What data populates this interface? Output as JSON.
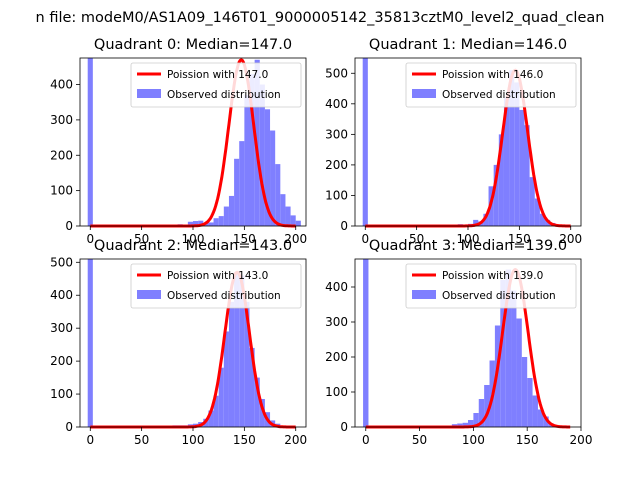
{
  "figure": {
    "suptitle": "n file: modeM0/AS1A09_146T01_9000005142_35813cztM0_level2_quad_clean",
    "colors": {
      "poisson": "#ff0000",
      "observed": "#7f7fff",
      "spike": "#7f7fff"
    }
  },
  "chart_data": [
    {
      "type": "histogram",
      "title": "Quadrant 0: Median=147.0",
      "median": 147.0,
      "xlim": [
        -10,
        210
      ],
      "ylim": [
        0,
        475
      ],
      "xticks": [
        0,
        50,
        100,
        150,
        200
      ],
      "yticks": [
        0,
        100,
        200,
        300,
        400
      ],
      "spike": {
        "x": 0,
        "count": 475
      },
      "bins": {
        "start": 80,
        "width": 5,
        "counts": [
          4,
          5,
          3,
          12,
          14,
          15,
          8,
          10,
          22,
          28,
          55,
          85,
          190,
          240,
          370,
          430,
          470,
          400,
          330,
          270,
          175,
          90,
          55,
          30,
          15
        ]
      },
      "legend": [
        {
          "label": "Poission with 147.0",
          "kind": "line"
        },
        {
          "label": "Observed distribution",
          "kind": "patch"
        }
      ]
    },
    {
      "type": "histogram",
      "title": "Quadrant 1: Median=146.0",
      "median": 146.0,
      "xlim": [
        -10,
        210
      ],
      "ylim": [
        0,
        550
      ],
      "xticks": [
        0,
        50,
        100,
        150,
        200
      ],
      "yticks": [
        0,
        100,
        200,
        300,
        400,
        500
      ],
      "spike": {
        "x": 0,
        "count": 550
      },
      "bins": {
        "start": 90,
        "width": 5,
        "counts": [
          6,
          5,
          7,
          20,
          15,
          40,
          130,
          200,
          300,
          420,
          510,
          470,
          380,
          330,
          160,
          90,
          40,
          20,
          10
        ]
      },
      "legend": [
        {
          "label": "Poission with 146.0",
          "kind": "line"
        },
        {
          "label": "Observed distribution",
          "kind": "patch"
        }
      ]
    },
    {
      "type": "histogram",
      "title": "Quadrant 2: Median=143.0",
      "median": 143.0,
      "xlim": [
        -10,
        210
      ],
      "ylim": [
        0,
        510
      ],
      "xticks": [
        0,
        50,
        100,
        150,
        200
      ],
      "yticks": [
        0,
        100,
        200,
        300,
        400,
        500
      ],
      "spike": {
        "x": 0,
        "count": 510
      },
      "bins": {
        "start": 80,
        "width": 5,
        "counts": [
          5,
          5,
          5,
          8,
          10,
          15,
          25,
          50,
          95,
          180,
          290,
          380,
          470,
          460,
          380,
          240,
          150,
          85,
          45,
          20,
          10
        ]
      },
      "legend": [
        {
          "label": "Poission with 143.0",
          "kind": "line"
        },
        {
          "label": "Observed distribution",
          "kind": "patch"
        }
      ]
    },
    {
      "type": "histogram",
      "title": "Quadrant 3: Median=139.0",
      "median": 139.0,
      "xlim": [
        -10,
        200
      ],
      "ylim": [
        0,
        480
      ],
      "xticks": [
        0,
        50,
        100,
        150,
        200
      ],
      "yticks": [
        0,
        100,
        200,
        300,
        400
      ],
      "spike": {
        "x": 0,
        "count": 480
      },
      "bins": {
        "start": 80,
        "width": 5,
        "counts": [
          8,
          10,
          12,
          20,
          40,
          80,
          120,
          190,
          290,
          420,
          450,
          390,
          310,
          200,
          140,
          90,
          50,
          30,
          10
        ]
      },
      "legend": [
        {
          "label": "Poission with 139.0",
          "kind": "line"
        },
        {
          "label": "Observed distribution",
          "kind": "patch"
        }
      ]
    }
  ]
}
